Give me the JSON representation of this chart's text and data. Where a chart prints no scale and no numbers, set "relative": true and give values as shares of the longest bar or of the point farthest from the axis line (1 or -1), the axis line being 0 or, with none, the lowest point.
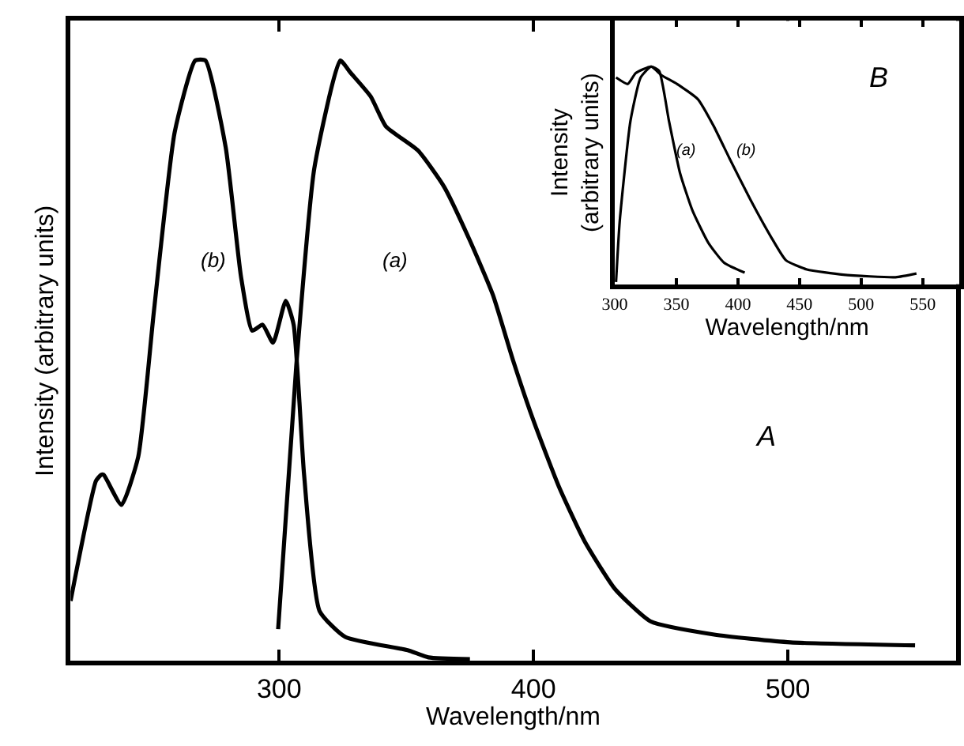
{
  "chart_data": [
    {
      "type": "line",
      "relative": true,
      "xlabel": "Wavelength/nm",
      "ylabel": "Intensity (arbitrary units)",
      "xlim": [
        218,
        566
      ],
      "xticks": [
        300,
        400,
        500
      ],
      "tick_labels": "x",
      "series": [
        {
          "color": "#000000",
          "x": [
            218,
            228,
            230,
            231,
            238,
            244.6,
            250.7,
            258.9,
            267,
            271,
            279,
            285,
            289.4,
            293.5,
            297.6,
            302.6,
            305.7,
            309.8,
            315.9,
            326,
            350.5,
            358.7,
            375
          ],
          "values": [
            0.1,
            0.3,
            0.31,
            0.31,
            0.26,
            0.34,
            0.58,
            0.88,
            1.0,
            1.0,
            0.855,
            0.64,
            0.55,
            0.56,
            0.53,
            0.6,
            0.56,
            0.31,
            0.083,
            0.04,
            0.018,
            0.006,
            0.003
          ]
        },
        {
          "color": "#000000",
          "x": [
            299.6,
            306.7,
            313.8,
            324,
            328,
            336,
            342,
            354.6,
            364.8,
            375,
            384,
            392,
            400,
            410,
            420,
            432,
            446,
            471,
            501,
            550
          ],
          "values": [
            0.053,
            0.49,
            0.82,
            1.0,
            0.98,
            0.94,
            0.89,
            0.85,
            0.79,
            0.7,
            0.61,
            0.5,
            0.4,
            0.29,
            0.2,
            0.12,
            0.066,
            0.044,
            0.031,
            0.026
          ]
        }
      ],
      "annotations": [
        "(b)",
        "(a)",
        "A"
      ]
    },
    {
      "type": "line",
      "relative": true,
      "xlabel": "Wavelength/nm",
      "ylabel": "Intensity\n(arbitrary units)",
      "xlim": [
        300,
        580
      ],
      "xticks": [
        300,
        350,
        400,
        450,
        500,
        550
      ],
      "tick_labels": "x",
      "series": [
        {
          "color": "#000000",
          "x": [
            301,
            304,
            312.7,
            321,
            329.5,
            336,
            344,
            353,
            363,
            376,
            388.6,
            405.5
          ],
          "values": [
            0.01,
            0.29,
            0.75,
            0.95,
            1.0,
            0.98,
            0.75,
            0.51,
            0.34,
            0.19,
            0.1,
            0.053
          ]
        },
        {
          "color": "#000000",
          "x": [
            301,
            310.5,
            317,
            329.5,
            338,
            350.6,
            367.5,
            380,
            393,
            410,
            426.6,
            439,
            456,
            485.6,
            528,
            545
          ],
          "values": [
            0.95,
            0.92,
            0.97,
            1.0,
            0.96,
            0.92,
            0.85,
            0.73,
            0.58,
            0.39,
            0.22,
            0.11,
            0.068,
            0.044,
            0.032,
            0.049
          ]
        }
      ],
      "annotations": [
        "(a)",
        "(b)",
        "B"
      ]
    }
  ]
}
